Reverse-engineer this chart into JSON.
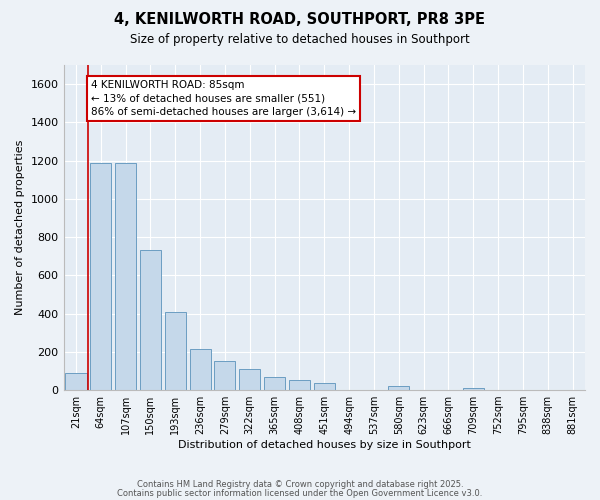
{
  "title": "4, KENILWORTH ROAD, SOUTHPORT, PR8 3PE",
  "subtitle": "Size of property relative to detached houses in Southport",
  "xlabel": "Distribution of detached houses by size in Southport",
  "ylabel": "Number of detached properties",
  "annotation_title": "4 KENILWORTH ROAD: 85sqm",
  "annotation_line1": "← 13% of detached houses are smaller (551)",
  "annotation_line2": "86% of semi-detached houses are larger (3,614) →",
  "bar_color": "#c5d8ea",
  "bar_edge_color": "#6b9dc2",
  "annotation_box_color": "#ffffff",
  "annotation_box_edge": "#cc0000",
  "redline_color": "#cc0000",
  "background_color": "#edf2f7",
  "plot_bg_color": "#e4ecf4",
  "grid_color": "#ffffff",
  "categories": [
    "21sqm",
    "64sqm",
    "107sqm",
    "150sqm",
    "193sqm",
    "236sqm",
    "279sqm",
    "322sqm",
    "365sqm",
    "408sqm",
    "451sqm",
    "494sqm",
    "537sqm",
    "580sqm",
    "623sqm",
    "666sqm",
    "709sqm",
    "752sqm",
    "795sqm",
    "838sqm",
    "881sqm"
  ],
  "values": [
    90,
    1190,
    1190,
    730,
    410,
    215,
    150,
    110,
    70,
    55,
    35,
    0,
    0,
    20,
    0,
    0,
    10,
    0,
    0,
    0,
    0
  ],
  "red_line_x": 0.5,
  "ylim": [
    0,
    1700
  ],
  "yticks": [
    0,
    200,
    400,
    600,
    800,
    1000,
    1200,
    1400,
    1600
  ],
  "footnote1": "Contains HM Land Registry data © Crown copyright and database right 2025.",
  "footnote2": "Contains public sector information licensed under the Open Government Licence v3.0."
}
